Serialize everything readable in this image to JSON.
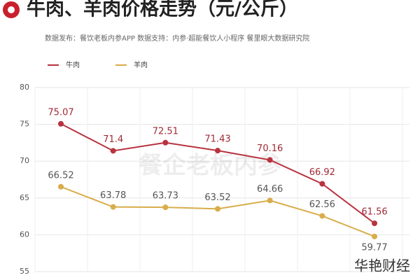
{
  "chart_data": {
    "type": "line",
    "title": "牛肉、羊肉价格走势（元/公斤）",
    "subtitle": "数据发布：餐饮老板内参APP  数据支持：内参·超能餐饮人小程序  餐里眼大数据研究院",
    "categories": [
      null,
      null,
      null,
      null,
      null,
      null,
      null
    ],
    "series": [
      {
        "name": "牛肉",
        "color": "#b8323f",
        "values": [
          75.07,
          71.4,
          72.51,
          71.43,
          70.16,
          66.92,
          61.56
        ],
        "value_labels": [
          "75.07",
          "71.4",
          "72.51",
          "71.43",
          "70.16",
          "66.92",
          "61.56"
        ]
      },
      {
        "name": "羊肉",
        "color": "#d8ad4a",
        "values": [
          66.52,
          63.78,
          63.73,
          63.52,
          64.66,
          62.56,
          59.77
        ],
        "value_labels": [
          "66.52",
          "63.78",
          "63.73",
          "63.52",
          "64.66",
          "62.56",
          "59.77"
        ]
      }
    ],
    "ylim": [
      55,
      80
    ],
    "yticks": [
      55,
      60,
      65,
      70,
      75,
      80
    ],
    "grid": true,
    "annotations": [
      "餐企老板内参",
      "华艳财经"
    ]
  }
}
